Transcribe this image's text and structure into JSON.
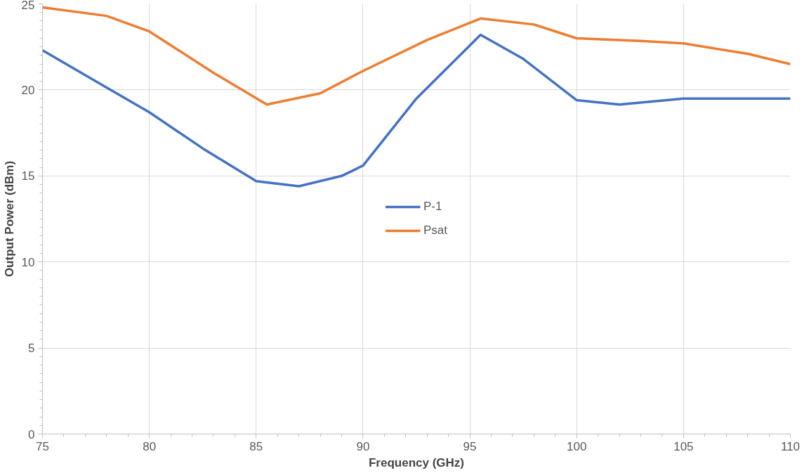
{
  "chart_data": {
    "type": "line",
    "xlabel": "Frequency (GHz)",
    "ylabel": "Output Power (dBm)",
    "xlim": [
      75,
      110
    ],
    "ylim": [
      0,
      25
    ],
    "xticks": [
      75,
      80,
      85,
      90,
      95,
      100,
      105,
      110
    ],
    "yticks": [
      0,
      5,
      10,
      15,
      20,
      25
    ],
    "grid": true,
    "legend": "center",
    "marker": "none",
    "line_style": "solid",
    "series": [
      {
        "name": "P-1",
        "color": "#4472c4",
        "x": [
          75,
          77.5,
          80,
          82.5,
          85,
          87,
          89,
          90,
          92.5,
          95.5,
          97.5,
          100,
          102,
          105,
          110
        ],
        "values": [
          22.3,
          20.5,
          18.7,
          16.6,
          14.7,
          14.4,
          15.0,
          15.6,
          19.5,
          23.2,
          21.8,
          19.4,
          19.15,
          19.5,
          19.5
        ]
      },
      {
        "name": "Psat",
        "color": "#ed7d31",
        "x": [
          75,
          78,
          80,
          83,
          85.5,
          88,
          90,
          93,
          95.5,
          98,
          100,
          103,
          105,
          108,
          110
        ],
        "values": [
          24.8,
          24.3,
          23.4,
          21.0,
          19.15,
          19.8,
          21.1,
          22.9,
          24.15,
          23.8,
          23.0,
          22.85,
          22.7,
          22.1,
          21.5
        ]
      }
    ]
  }
}
